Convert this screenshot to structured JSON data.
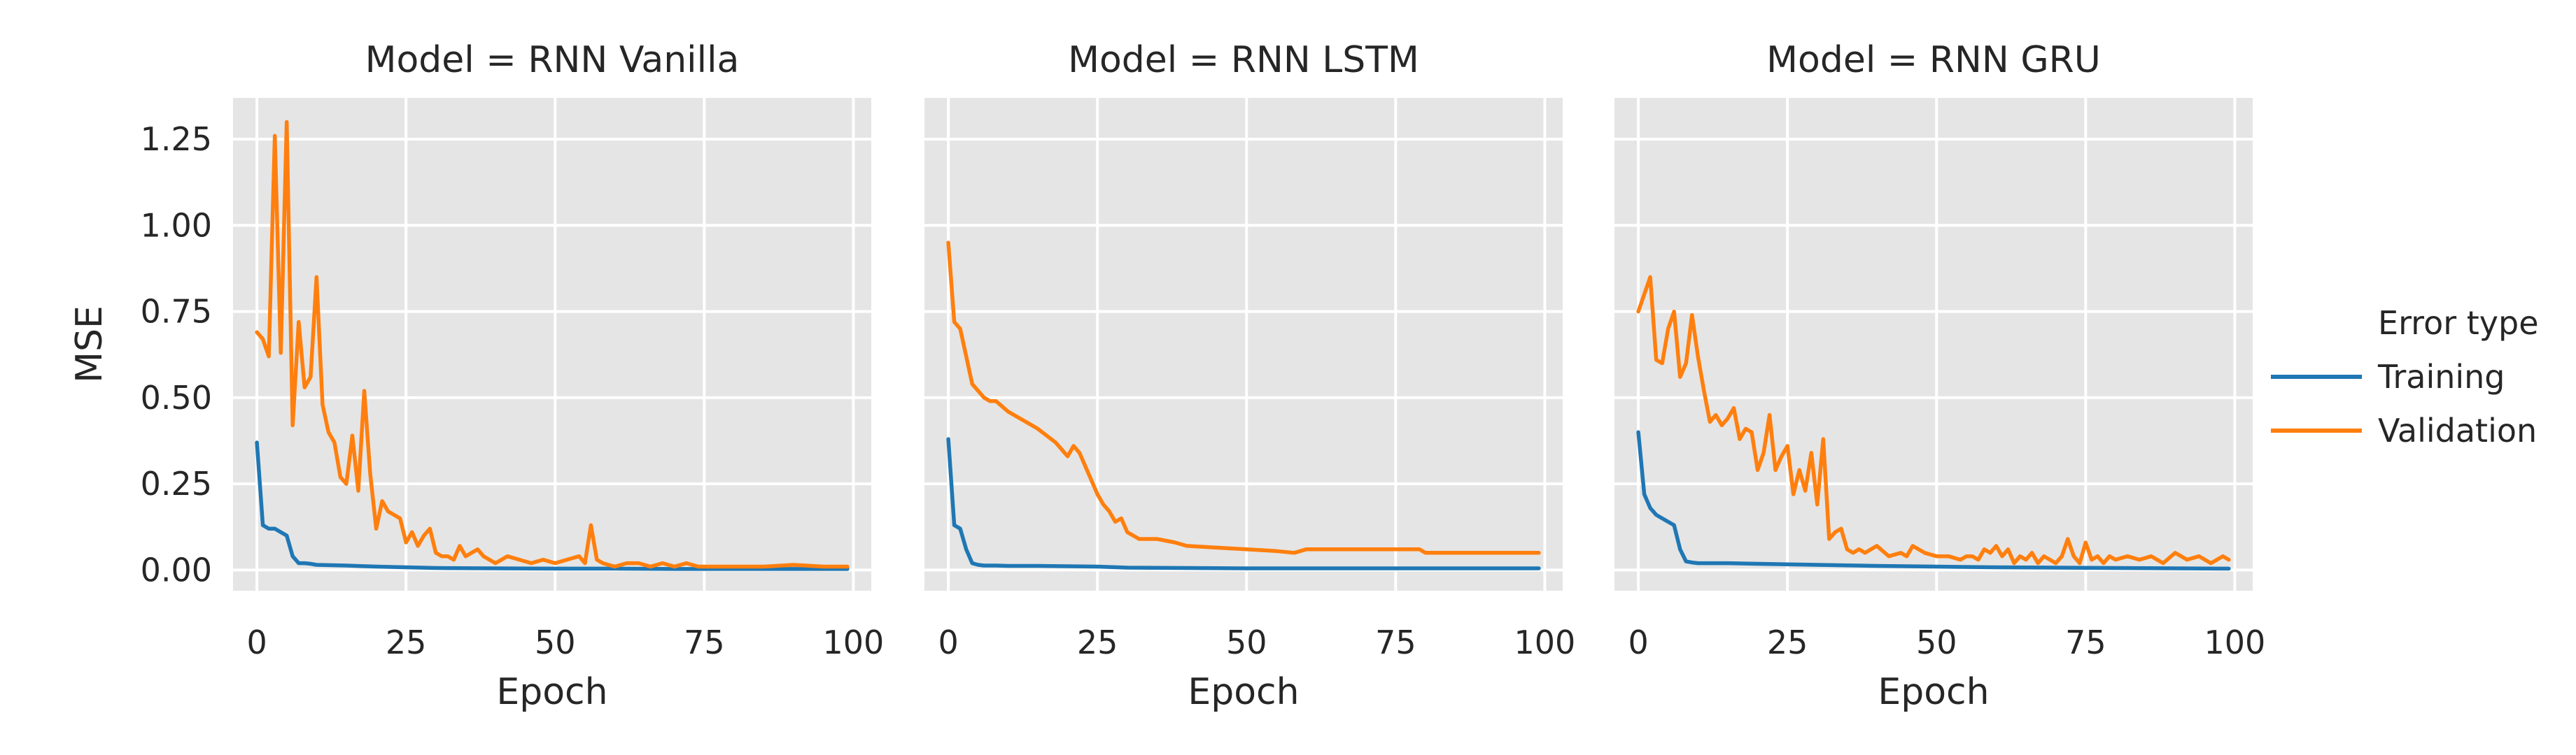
{
  "chart_data": {
    "type": "line",
    "legend": {
      "title": "Error type",
      "placement": "right",
      "entries": [
        "Training",
        "Validation"
      ]
    },
    "x_label": "Epoch",
    "y_label": "MSE",
    "xlim": [
      -4,
      103
    ],
    "ylim": [
      -0.06,
      1.37
    ],
    "x_ticks": [
      0,
      25,
      50,
      75,
      100
    ],
    "y_ticks": [
      0.0,
      0.25,
      0.5,
      0.75,
      1.0,
      1.25
    ],
    "x_tick_labels": [
      "0",
      "25",
      "50",
      "75",
      "100"
    ],
    "y_tick_labels": [
      "0.00",
      "0.25",
      "0.50",
      "0.75",
      "1.00",
      "1.25"
    ],
    "grid": true,
    "colors": {
      "Training": "#1f77b4",
      "Validation": "#ff7f0e"
    },
    "panels": [
      {
        "title": "Model = RNN Vanilla",
        "series": [
          {
            "name": "Training",
            "x": [
              0,
              1,
              2,
              3,
              4,
              5,
              6,
              7,
              8,
              9,
              10,
              15,
              20,
              25,
              30,
              40,
              50,
              60,
              70,
              80,
              90,
              99
            ],
            "y": [
              0.37,
              0.13,
              0.12,
              0.12,
              0.11,
              0.1,
              0.04,
              0.02,
              0.02,
              0.018,
              0.015,
              0.013,
              0.01,
              0.008,
              0.006,
              0.005,
              0.004,
              0.004,
              0.003,
              0.003,
              0.003,
              0.003
            ]
          },
          {
            "name": "Validation",
            "x": [
              0,
              1,
              2,
              3,
              4,
              5,
              6,
              7,
              8,
              9,
              10,
              11,
              12,
              13,
              14,
              15,
              16,
              17,
              18,
              19,
              20,
              21,
              22,
              23,
              24,
              25,
              26,
              27,
              28,
              29,
              30,
              31,
              32,
              33,
              34,
              35,
              36,
              37,
              38,
              40,
              42,
              44,
              46,
              48,
              50,
              52,
              54,
              55,
              56,
              57,
              58,
              60,
              62,
              64,
              66,
              68,
              70,
              72,
              74,
              76,
              80,
              85,
              90,
              95,
              99
            ],
            "y": [
              0.69,
              0.67,
              0.62,
              1.26,
              0.63,
              1.3,
              0.42,
              0.72,
              0.53,
              0.56,
              0.85,
              0.48,
              0.4,
              0.37,
              0.27,
              0.25,
              0.39,
              0.23,
              0.52,
              0.28,
              0.12,
              0.2,
              0.17,
              0.16,
              0.15,
              0.08,
              0.11,
              0.07,
              0.1,
              0.12,
              0.05,
              0.04,
              0.04,
              0.03,
              0.07,
              0.04,
              0.05,
              0.06,
              0.04,
              0.02,
              0.04,
              0.03,
              0.02,
              0.03,
              0.02,
              0.03,
              0.04,
              0.02,
              0.13,
              0.03,
              0.02,
              0.01,
              0.02,
              0.02,
              0.01,
              0.02,
              0.01,
              0.02,
              0.01,
              0.01,
              0.01,
              0.01,
              0.015,
              0.01,
              0.01
            ]
          }
        ]
      },
      {
        "title": "Model = RNN LSTM",
        "series": [
          {
            "name": "Training",
            "x": [
              0,
              1,
              2,
              3,
              4,
              5,
              6,
              8,
              10,
              15,
              20,
              25,
              30,
              40,
              50,
              60,
              70,
              80,
              90,
              99
            ],
            "y": [
              0.38,
              0.13,
              0.12,
              0.06,
              0.02,
              0.015,
              0.013,
              0.013,
              0.012,
              0.012,
              0.011,
              0.01,
              0.007,
              0.006,
              0.005,
              0.005,
              0.005,
              0.005,
              0.005,
              0.005
            ]
          },
          {
            "name": "Validation",
            "x": [
              0,
              1,
              2,
              3,
              4,
              5,
              6,
              7,
              8,
              10,
              12,
              15,
              18,
              20,
              21,
              22,
              23,
              24,
              25,
              26,
              27,
              28,
              29,
              30,
              31,
              32,
              35,
              38,
              40,
              45,
              50,
              55,
              58,
              60,
              65,
              70,
              75,
              79,
              80,
              85,
              90,
              95,
              99
            ],
            "y": [
              0.95,
              0.72,
              0.7,
              0.62,
              0.54,
              0.52,
              0.5,
              0.49,
              0.49,
              0.46,
              0.44,
              0.41,
              0.37,
              0.33,
              0.36,
              0.34,
              0.3,
              0.26,
              0.22,
              0.19,
              0.17,
              0.14,
              0.15,
              0.11,
              0.1,
              0.09,
              0.09,
              0.08,
              0.07,
              0.065,
              0.06,
              0.055,
              0.05,
              0.06,
              0.06,
              0.06,
              0.06,
              0.06,
              0.05,
              0.05,
              0.05,
              0.05,
              0.05
            ]
          }
        ]
      },
      {
        "title": "Model = RNN GRU",
        "series": [
          {
            "name": "Training",
            "x": [
              0,
              1,
              2,
              3,
              4,
              5,
              6,
              7,
              8,
              9,
              10,
              15,
              20,
              30,
              40,
              50,
              60,
              70,
              80,
              90,
              99
            ],
            "y": [
              0.4,
              0.22,
              0.18,
              0.16,
              0.15,
              0.14,
              0.13,
              0.06,
              0.025,
              0.022,
              0.02,
              0.02,
              0.018,
              0.015,
              0.012,
              0.01,
              0.008,
              0.007,
              0.006,
              0.005,
              0.004
            ]
          },
          {
            "name": "Validation",
            "x": [
              0,
              1,
              2,
              3,
              4,
              5,
              6,
              7,
              8,
              9,
              10,
              11,
              12,
              13,
              14,
              15,
              16,
              17,
              18,
              19,
              20,
              21,
              22,
              23,
              24,
              25,
              26,
              27,
              28,
              29,
              30,
              31,
              32,
              33,
              34,
              35,
              36,
              37,
              38,
              39,
              40,
              42,
              44,
              45,
              46,
              48,
              50,
              52,
              54,
              55,
              56,
              57,
              58,
              59,
              60,
              61,
              62,
              63,
              64,
              65,
              66,
              67,
              68,
              69,
              70,
              71,
              72,
              73,
              74,
              75,
              76,
              77,
              78,
              79,
              80,
              82,
              84,
              86,
              88,
              90,
              92,
              94,
              96,
              98,
              99
            ],
            "y": [
              0.75,
              0.8,
              0.85,
              0.61,
              0.6,
              0.7,
              0.75,
              0.56,
              0.6,
              0.74,
              0.62,
              0.52,
              0.43,
              0.45,
              0.42,
              0.44,
              0.47,
              0.38,
              0.41,
              0.4,
              0.29,
              0.34,
              0.45,
              0.29,
              0.33,
              0.36,
              0.22,
              0.29,
              0.23,
              0.34,
              0.19,
              0.38,
              0.09,
              0.11,
              0.12,
              0.06,
              0.05,
              0.06,
              0.05,
              0.06,
              0.07,
              0.04,
              0.05,
              0.04,
              0.07,
              0.05,
              0.04,
              0.04,
              0.03,
              0.04,
              0.04,
              0.03,
              0.06,
              0.05,
              0.07,
              0.04,
              0.06,
              0.02,
              0.04,
              0.03,
              0.05,
              0.02,
              0.04,
              0.03,
              0.02,
              0.04,
              0.09,
              0.04,
              0.02,
              0.08,
              0.03,
              0.04,
              0.02,
              0.04,
              0.03,
              0.04,
              0.03,
              0.04,
              0.02,
              0.05,
              0.03,
              0.04,
              0.02,
              0.04,
              0.03
            ]
          }
        ]
      }
    ]
  }
}
